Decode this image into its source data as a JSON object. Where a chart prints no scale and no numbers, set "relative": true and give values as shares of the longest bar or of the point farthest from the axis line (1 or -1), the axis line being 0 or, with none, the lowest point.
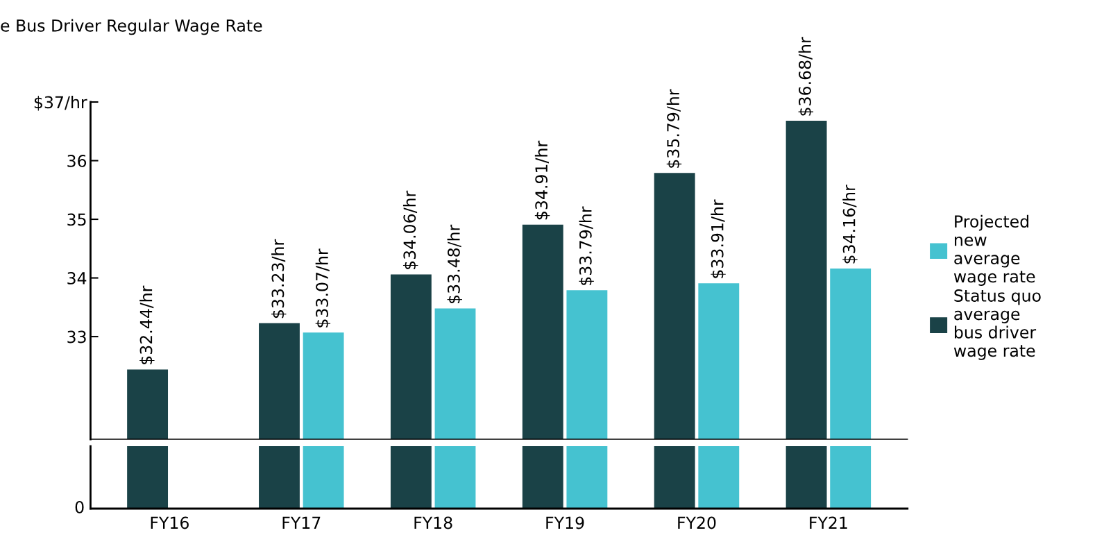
{
  "chart_data": [
    {
      "type": "bar",
      "title": "e Bus Driver Regular Wage Rate",
      "categories": [
        null,
        null,
        null,
        null,
        null,
        null
      ],
      "series": [
        {
          "name": "Status quo\naverage\nbus driver\nwage rate",
          "color": "#1a4247",
          "values": [
            32.44,
            33.23,
            34.06,
            34.91,
            35.79,
            36.68
          ],
          "value_labels": [
            "$32.44/hr",
            "$33.23/hr",
            "$34.06/hr",
            "$34.91/hr",
            "$35.79/hr",
            "$36.68/hr"
          ]
        },
        {
          "name": "Projected\nnew\naverage\nwage rate",
          "color": "#45c2d0",
          "values": [
            null,
            33.07,
            33.48,
            33.79,
            33.91,
            34.16
          ],
          "value_labels": [
            null,
            "$33.07/hr",
            "$33.48/hr",
            "$33.79/hr",
            "$33.91/hr",
            "$34.16/hr"
          ]
        }
      ],
      "ylim": [
        31.25,
        37
      ],
      "yticks": [
        33,
        34,
        35,
        36,
        {
          "value": 37,
          "label": "$37/hr"
        }
      ],
      "tick_labels": "y",
      "legend": "right",
      "grid": false
    },
    {
      "type": "bar",
      "relative": true,
      "categories": [
        "FY16",
        "FY17",
        "FY18",
        "FY19",
        "FY20",
        "FY21"
      ],
      "series": [
        {
          "color": "#1a4247",
          "values": [
            1,
            1,
            1,
            1,
            1,
            1
          ]
        },
        {
          "color": "#45c2d0",
          "values": [
            null,
            1,
            1,
            1,
            1,
            1
          ]
        }
      ],
      "annotations": [
        "0"
      ]
    }
  ]
}
